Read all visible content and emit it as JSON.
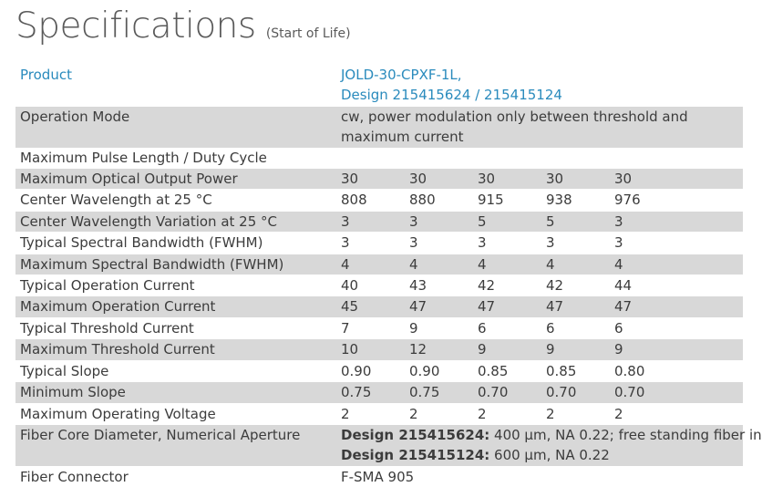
{
  "title": "Specifications",
  "subtitle": "(Start of Life)",
  "product": {
    "label": "Product",
    "value_line1": "JOLD-30-CPXF-1L,",
    "value_line2": "Design 215415624 / 215415124"
  },
  "operation_mode": {
    "label": "Operation Mode",
    "line1": "cw, power modulation only between threshold and",
    "line2": "maximum current"
  },
  "rows": [
    {
      "label": "Maximum Pulse Length / Duty Cycle",
      "values": [
        "",
        "",
        "",
        "",
        ""
      ]
    },
    {
      "label": "Maximum Optical Output Power",
      "values": [
        "30",
        "30",
        "30",
        "30",
        "30"
      ]
    },
    {
      "label": "Center Wavelength at 25 °C",
      "values": [
        "808",
        "880",
        "915",
        "938",
        "976"
      ]
    },
    {
      "label": "Center Wavelength Variation at 25 °C",
      "values": [
        "3",
        "3",
        "5",
        "5",
        "3"
      ]
    },
    {
      "label": "Typical Spectral Bandwidth (FWHM)",
      "values": [
        "3",
        "3",
        "3",
        "3",
        "3"
      ]
    },
    {
      "label": "Maximum Spectral Bandwidth (FWHM)",
      "values": [
        "4",
        "4",
        "4",
        "4",
        "4"
      ]
    },
    {
      "label": "Typical Operation Current",
      "values": [
        "40",
        "43",
        "42",
        "42",
        "44"
      ]
    },
    {
      "label": "Maximum Operation Current",
      "values": [
        "45",
        "47",
        "47",
        "47",
        "47"
      ]
    },
    {
      "label": "Typical Threshold Current",
      "values": [
        "7",
        "9",
        "6",
        "6",
        "6"
      ]
    },
    {
      "label": "Maximum Threshold Current",
      "values": [
        "10",
        "12",
        "9",
        "9",
        "9"
      ]
    },
    {
      "label": "Typical Slope",
      "values": [
        "0.90",
        "0.90",
        "0.85",
        "0.85",
        "0.80"
      ]
    },
    {
      "label": "Minimum Slope",
      "values": [
        "0.75",
        "0.75",
        "0.70",
        "0.70",
        "0.70"
      ]
    },
    {
      "label": "Maximum Operating Voltage",
      "values": [
        "2",
        "2",
        "2",
        "2",
        "2"
      ]
    }
  ],
  "fiber_core": {
    "label": "Fiber Core Diameter, Numerical Aperture",
    "design1_bold": "Design 215415624:",
    "design1_text": " 400 µm, NA 0.22; free standing fiber in",
    "design2_bold": "Design 215415124:",
    "design2_text": " 600 µm, NA 0.22"
  },
  "fiber_connector": {
    "label": "Fiber Connector",
    "value": "F-SMA 905"
  }
}
